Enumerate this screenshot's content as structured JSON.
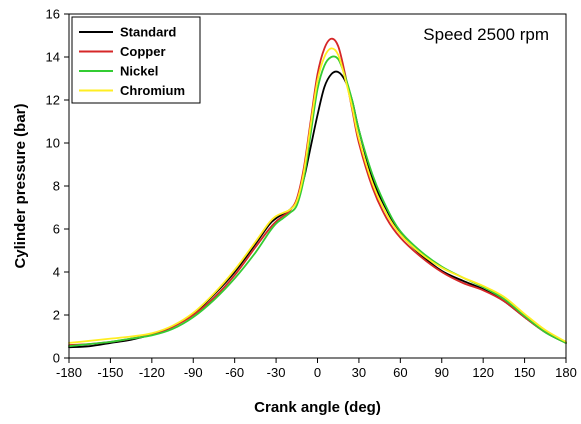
{
  "chart_data": {
    "type": "line",
    "title": "",
    "xlabel": "Crank angle (deg)",
    "ylabel": "Cylinder pressure (bar)",
    "xlim": [
      -180,
      180
    ],
    "ylim": [
      0,
      16
    ],
    "xticks": [
      -180,
      -150,
      -120,
      -90,
      -60,
      -30,
      0,
      30,
      60,
      90,
      120,
      150,
      180
    ],
    "yticks": [
      0,
      2,
      4,
      6,
      8,
      10,
      12,
      14,
      16
    ],
    "grid": false,
    "legend_position": "top-left",
    "annotation": "Speed 2500 rpm",
    "series": [
      {
        "name": "Standard",
        "color": "#000000",
        "x": [
          -180,
          -165,
          -150,
          -135,
          -120,
          -105,
          -90,
          -75,
          -60,
          -45,
          -35,
          -30,
          -25,
          -20,
          -15,
          -10,
          -5,
          0,
          5,
          10,
          15,
          20,
          25,
          30,
          40,
          50,
          60,
          75,
          90,
          105,
          120,
          135,
          150,
          165,
          180
        ],
        "y": [
          0.5,
          0.55,
          0.7,
          0.85,
          1.1,
          1.45,
          2.05,
          2.95,
          4.0,
          5.3,
          6.2,
          6.5,
          6.7,
          6.9,
          7.3,
          8.3,
          9.8,
          11.3,
          12.6,
          13.2,
          13.3,
          12.9,
          12.0,
          10.6,
          8.3,
          6.9,
          5.8,
          4.8,
          4.05,
          3.6,
          3.2,
          2.65,
          1.9,
          1.2,
          0.7
        ]
      },
      {
        "name": "Copper",
        "color": "#d62728",
        "x": [
          -180,
          -165,
          -150,
          -135,
          -120,
          -105,
          -90,
          -75,
          -60,
          -45,
          -35,
          -30,
          -25,
          -20,
          -15,
          -10,
          -5,
          0,
          5,
          10,
          15,
          20,
          25,
          30,
          40,
          50,
          60,
          75,
          90,
          105,
          120,
          135,
          150,
          165,
          180
        ],
        "y": [
          0.6,
          0.65,
          0.75,
          0.9,
          1.1,
          1.45,
          2.0,
          2.8,
          3.85,
          5.15,
          6.0,
          6.35,
          6.6,
          6.85,
          7.4,
          8.8,
          11.0,
          13.2,
          14.4,
          14.85,
          14.5,
          13.2,
          11.6,
          10.0,
          7.9,
          6.5,
          5.6,
          4.7,
          4.0,
          3.5,
          3.15,
          2.65,
          1.9,
          1.2,
          0.7
        ]
      },
      {
        "name": "Nickel",
        "color": "#33cc33",
        "x": [
          -180,
          -165,
          -150,
          -135,
          -120,
          -105,
          -90,
          -75,
          -60,
          -45,
          -35,
          -30,
          -25,
          -20,
          -15,
          -10,
          -5,
          0,
          5,
          10,
          15,
          20,
          25,
          30,
          40,
          50,
          60,
          75,
          90,
          105,
          120,
          135,
          150,
          165,
          180
        ],
        "y": [
          0.55,
          0.65,
          0.75,
          0.9,
          1.05,
          1.35,
          1.9,
          2.7,
          3.7,
          4.9,
          5.85,
          6.25,
          6.5,
          6.75,
          7.1,
          8.3,
          10.4,
          12.5,
          13.6,
          14.0,
          13.9,
          13.1,
          12.0,
          10.6,
          8.5,
          7.0,
          5.9,
          4.95,
          4.25,
          3.75,
          3.3,
          2.75,
          1.95,
          1.2,
          0.7
        ]
      },
      {
        "name": "Chromium",
        "color": "#ffee22",
        "x": [
          -180,
          -165,
          -150,
          -135,
          -120,
          -105,
          -90,
          -75,
          -60,
          -45,
          -35,
          -30,
          -25,
          -20,
          -15,
          -10,
          -5,
          0,
          5,
          10,
          15,
          20,
          25,
          30,
          40,
          50,
          60,
          75,
          90,
          105,
          120,
          135,
          150,
          165,
          180
        ],
        "y": [
          0.7,
          0.8,
          0.9,
          1.0,
          1.15,
          1.5,
          2.1,
          3.0,
          4.1,
          5.4,
          6.3,
          6.6,
          6.75,
          6.9,
          7.3,
          8.6,
          10.8,
          12.9,
          14.0,
          14.4,
          14.1,
          13.0,
          11.7,
          10.2,
          8.1,
          6.7,
          5.75,
          4.85,
          4.2,
          3.75,
          3.35,
          2.85,
          2.05,
          1.3,
          0.75
        ]
      }
    ]
  }
}
